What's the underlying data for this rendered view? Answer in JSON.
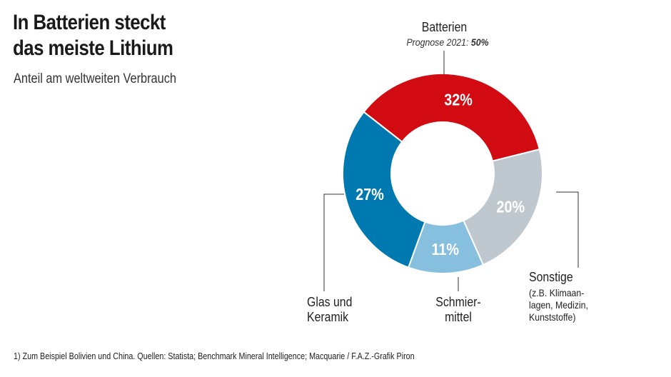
{
  "title": "In Batterien steckt\ndas meiste Lithium",
  "subtitle": "Anteil am weltweiten Verbrauch",
  "footnote": "1) Zum Beispiel Bolivien und China.  Quellen: Statista; Benchmark Mineral Intelligence; Macquarie / F.A.Z.-Grafik Piron",
  "chart_data": {
    "type": "pie",
    "title": "In Batterien steckt das meiste Lithium",
    "subtitle": "Anteil am weltweiten Verbrauch",
    "slices": [
      {
        "name": "Batterien",
        "value": 32,
        "label": "32%",
        "color": "#d20a11",
        "note_prefix": "Prognose 2021:",
        "note_value": "50%"
      },
      {
        "name": "Sonstige",
        "value": 20,
        "label": "20%",
        "color": "#bfc8ce",
        "note": "(z.B. Klimaan-\nlagen, Medizin,\nKunststoffe)"
      },
      {
        "name": "Schmier-\nmittel",
        "value": 11,
        "label": "11%",
        "color": "#87bfde"
      },
      {
        "name": "Glas und\nKeramik",
        "value": 27,
        "label": "27%",
        "color": "#0079b0"
      }
    ]
  }
}
